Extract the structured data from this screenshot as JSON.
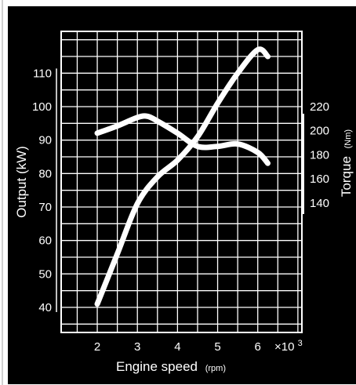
{
  "chart_data": {
    "type": "line",
    "title": "",
    "xlabel": "Engine speed",
    "xlabel_unit": "(rpm)",
    "x_multiplier": "×10",
    "x_multiplier_exp": "3",
    "ylabel": "Output (kW)",
    "ylabel_right": "Torque",
    "ylabel_right_unit": "(Nm)",
    "x_ticks": [
      2,
      3,
      4,
      5,
      6
    ],
    "xlim": [
      1.1,
      7.1
    ],
    "y_ticks": [
      40,
      50,
      60,
      70,
      80,
      90,
      100,
      110
    ],
    "ylim": [
      32.5,
      122.5
    ],
    "y2_ticks": [
      140,
      160,
      180,
      200,
      220
    ],
    "y2lim": [
      32.5,
      282.5
    ],
    "grid": true,
    "legend": "none",
    "colors": {
      "background": "#000000",
      "grid": "#ffffff",
      "line": "#ffffff",
      "text": "#ffffff"
    },
    "series": [
      {
        "axis": "left",
        "x": [
          2.0,
          2.5,
          3.0,
          3.5,
          4.0,
          4.5,
          5.0,
          5.5,
          6.0,
          6.25
        ],
        "y": [
          41,
          56,
          71,
          79,
          84,
          91,
          101,
          110,
          117,
          115
        ]
      },
      {
        "axis": "right",
        "x": [
          2.0,
          2.5,
          3.0,
          3.25,
          3.5,
          4.0,
          4.5,
          5.0,
          5.5,
          6.0,
          6.25
        ],
        "y": [
          198,
          204,
          211,
          212,
          208,
          198,
          187,
          187,
          189,
          182,
          173
        ]
      }
    ]
  }
}
